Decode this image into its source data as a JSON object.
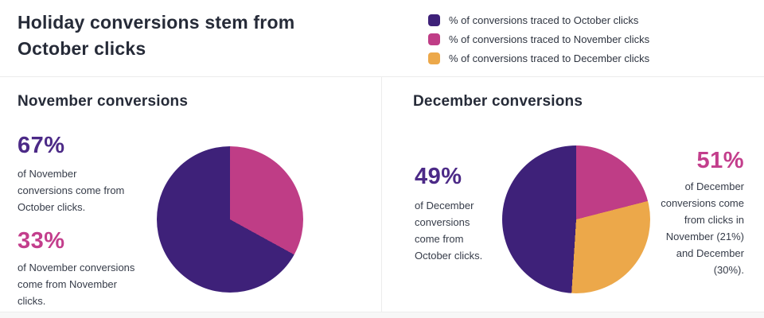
{
  "header": {
    "title": "Holiday conversions stem from October clicks"
  },
  "legend": {
    "items": [
      {
        "label": "% of conversions traced to October clicks",
        "color": "#3E2179",
        "icon": "square-swatch"
      },
      {
        "label": "% of conversions traced to November clicks",
        "color": "#BF3D86",
        "icon": "square-swatch"
      },
      {
        "label": "% of conversions traced to December clicks",
        "color": "#ECA84A",
        "icon": "square-swatch"
      }
    ]
  },
  "colors": {
    "purple": "#3E2179",
    "pink": "#BF3D86",
    "orange": "#ECA84A",
    "stat_purple": "#4C2A87",
    "stat_pink": "#C33E8C",
    "heading_dark": "#262B38",
    "body_text": "#363C49"
  },
  "panels": {
    "november": {
      "heading": "November conversions",
      "stat_october": {
        "value": "67%",
        "description": "of November conversions come from October clicks."
      },
      "stat_november": {
        "value": "33%",
        "description": "of November conversions come from November clicks."
      }
    },
    "december": {
      "heading": "December conversions",
      "stat_october": {
        "value": "49%",
        "description": "of December conversions come from October clicks."
      },
      "stat_nov_dec": {
        "value": "51%",
        "description": "of December conversions come from clicks in November (21%) and December (30%)."
      }
    }
  },
  "chart_data": [
    {
      "type": "pie",
      "title": "November conversions",
      "start_angle_deg": 0,
      "direction": "clockwise",
      "legend_position": "top-right",
      "slices": [
        {
          "label": "% of conversions traced to November clicks",
          "value": 33,
          "color": "#BF3D86"
        },
        {
          "label": "% of conversions traced to October clicks",
          "value": 67,
          "color": "#3E2179"
        }
      ],
      "annotations": [
        "67% of November conversions come from October clicks.",
        "33% of November conversions come from November clicks."
      ]
    },
    {
      "type": "pie",
      "title": "December conversions",
      "start_angle_deg": 0,
      "direction": "clockwise",
      "legend_position": "top-right",
      "slices": [
        {
          "label": "% of conversions traced to November clicks",
          "value": 21,
          "color": "#BF3D86"
        },
        {
          "label": "% of conversions traced to December clicks",
          "value": 30,
          "color": "#ECA84A"
        },
        {
          "label": "% of conversions traced to October clicks",
          "value": 49,
          "color": "#3E2179"
        }
      ],
      "annotations": [
        "49% of December conversions come from October clicks.",
        "51% of December conversions come from clicks in November (21%) and December (30%)."
      ]
    }
  ]
}
